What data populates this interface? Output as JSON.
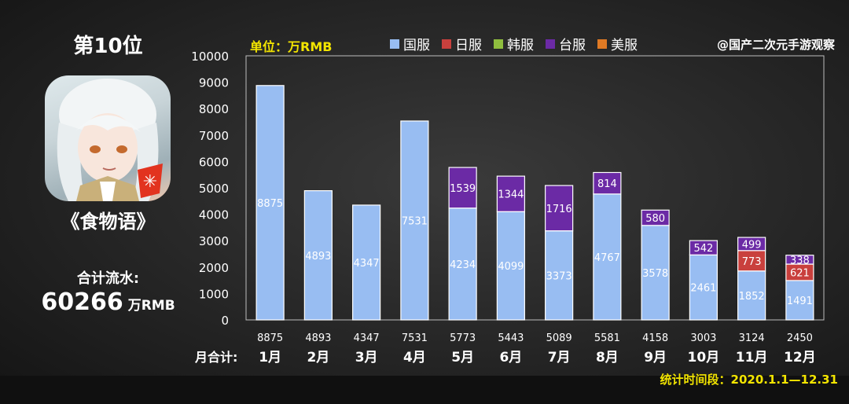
{
  "rank_title": "第10位",
  "game_name": "《食物语》",
  "total": {
    "label": "合计流水:",
    "value": "60266",
    "unit": "万RMB"
  },
  "unit_text": "单位：万RMB",
  "watermark": "@国产二次元手游观察",
  "period_text": "统计时间段：2020.1.1—12.31",
  "legend": [
    {
      "name": "国服",
      "color": "#98bdf2"
    },
    {
      "name": "日服",
      "color": "#c9403d"
    },
    {
      "name": "韩服",
      "color": "#8fbe3e"
    },
    {
      "name": "台服",
      "color": "#6b2aa5"
    },
    {
      "name": "美服",
      "color": "#e07a24"
    }
  ],
  "chart_data": {
    "type": "bar",
    "stacked": true,
    "categories": [
      "1月",
      "2月",
      "3月",
      "4月",
      "5月",
      "6月",
      "7月",
      "8月",
      "9月",
      "10月",
      "11月",
      "12月"
    ],
    "series": [
      {
        "name": "国服",
        "color": "#98bdf2",
        "values": [
          8875,
          4893,
          4347,
          7531,
          4234,
          4099,
          3373,
          4767,
          3578,
          2461,
          1852,
          1491
        ]
      },
      {
        "name": "日服",
        "color": "#c9403d",
        "values": [
          0,
          0,
          0,
          0,
          0,
          0,
          0,
          0,
          0,
          0,
          773,
          621
        ]
      },
      {
        "name": "韩服",
        "color": "#8fbe3e",
        "values": [
          0,
          0,
          0,
          0,
          0,
          0,
          0,
          0,
          0,
          0,
          0,
          0
        ]
      },
      {
        "name": "台服",
        "color": "#6b2aa5",
        "values": [
          0,
          0,
          0,
          0,
          1539,
          1344,
          1716,
          814,
          580,
          542,
          499,
          338
        ]
      },
      {
        "name": "美服",
        "color": "#e07a24",
        "values": [
          0,
          0,
          0,
          0,
          0,
          0,
          0,
          0,
          0,
          0,
          0,
          0
        ]
      }
    ],
    "totals": [
      8875,
      4893,
      4347,
      7531,
      5773,
      5443,
      5089,
      5581,
      4158,
      3003,
      3124,
      2450
    ],
    "totals_label": "月合计:",
    "ylim": [
      0,
      10000
    ],
    "yticks": [
      0,
      1000,
      2000,
      3000,
      4000,
      5000,
      6000,
      7000,
      8000,
      9000,
      10000
    ]
  }
}
